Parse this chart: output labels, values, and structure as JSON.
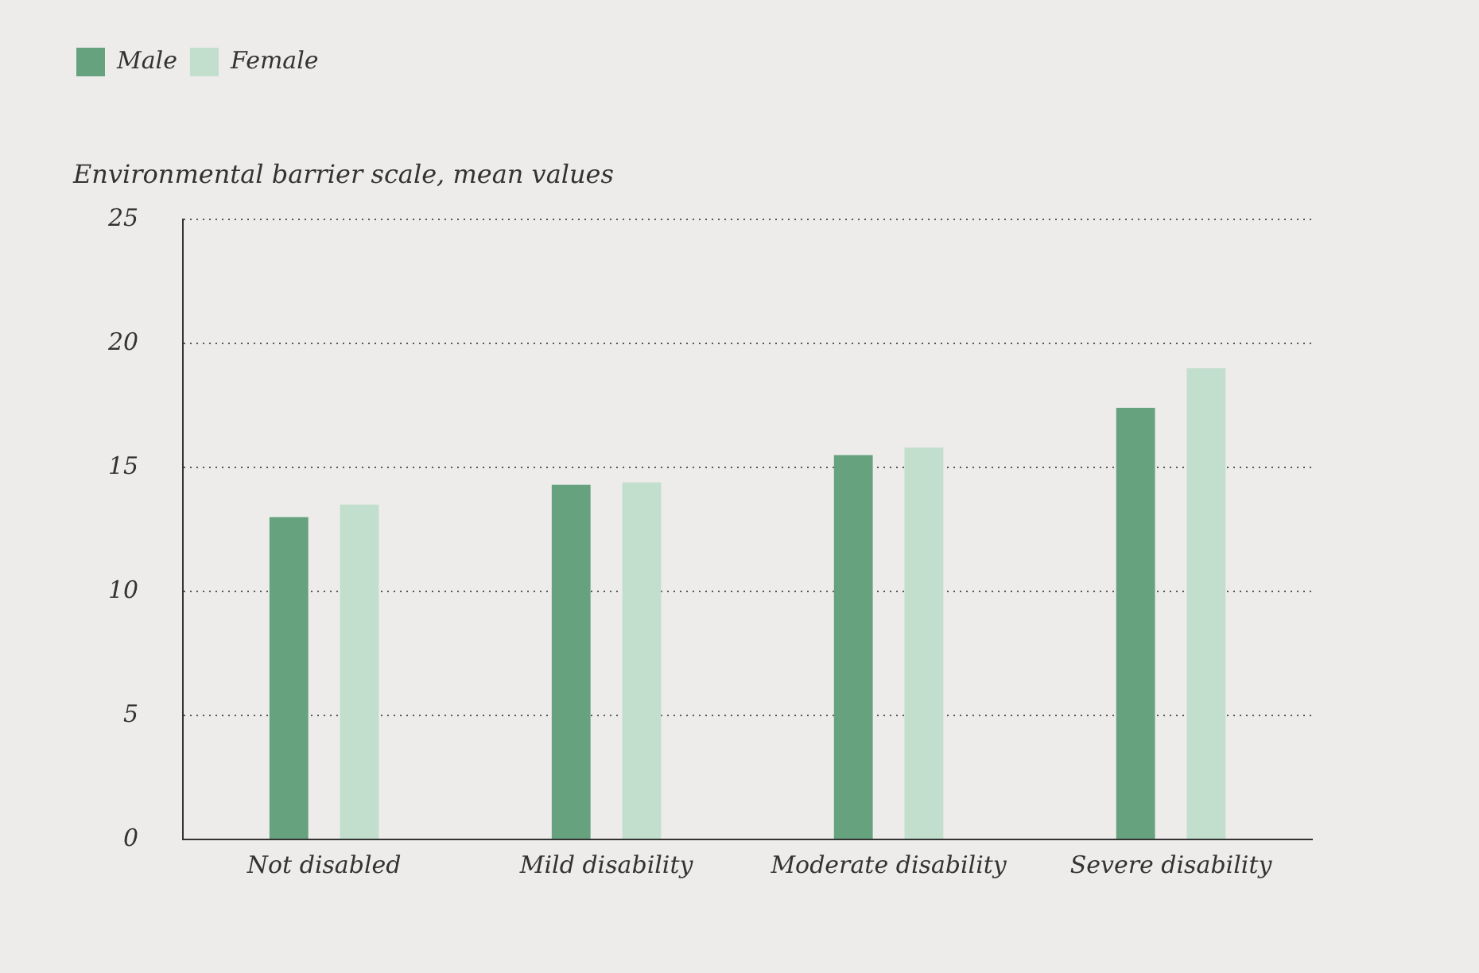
{
  "chart_data": {
    "type": "bar",
    "ylabel": "Environmental barrier scale, mean values",
    "categories": [
      "Not disabled",
      "Mild disability",
      "Moderate disability",
      "Severe disability"
    ],
    "series": [
      {
        "name": "Male",
        "color": "#65a27d",
        "values": [
          13.0,
          14.3,
          15.5,
          17.4
        ]
      },
      {
        "name": "Female",
        "color": "#c2decc",
        "values": [
          13.5,
          14.4,
          15.8,
          19.0
        ]
      }
    ],
    "ylim": [
      0,
      25
    ],
    "yticks": [
      0,
      5,
      10,
      15,
      20,
      25
    ],
    "grid": "y",
    "legend": "top left"
  }
}
